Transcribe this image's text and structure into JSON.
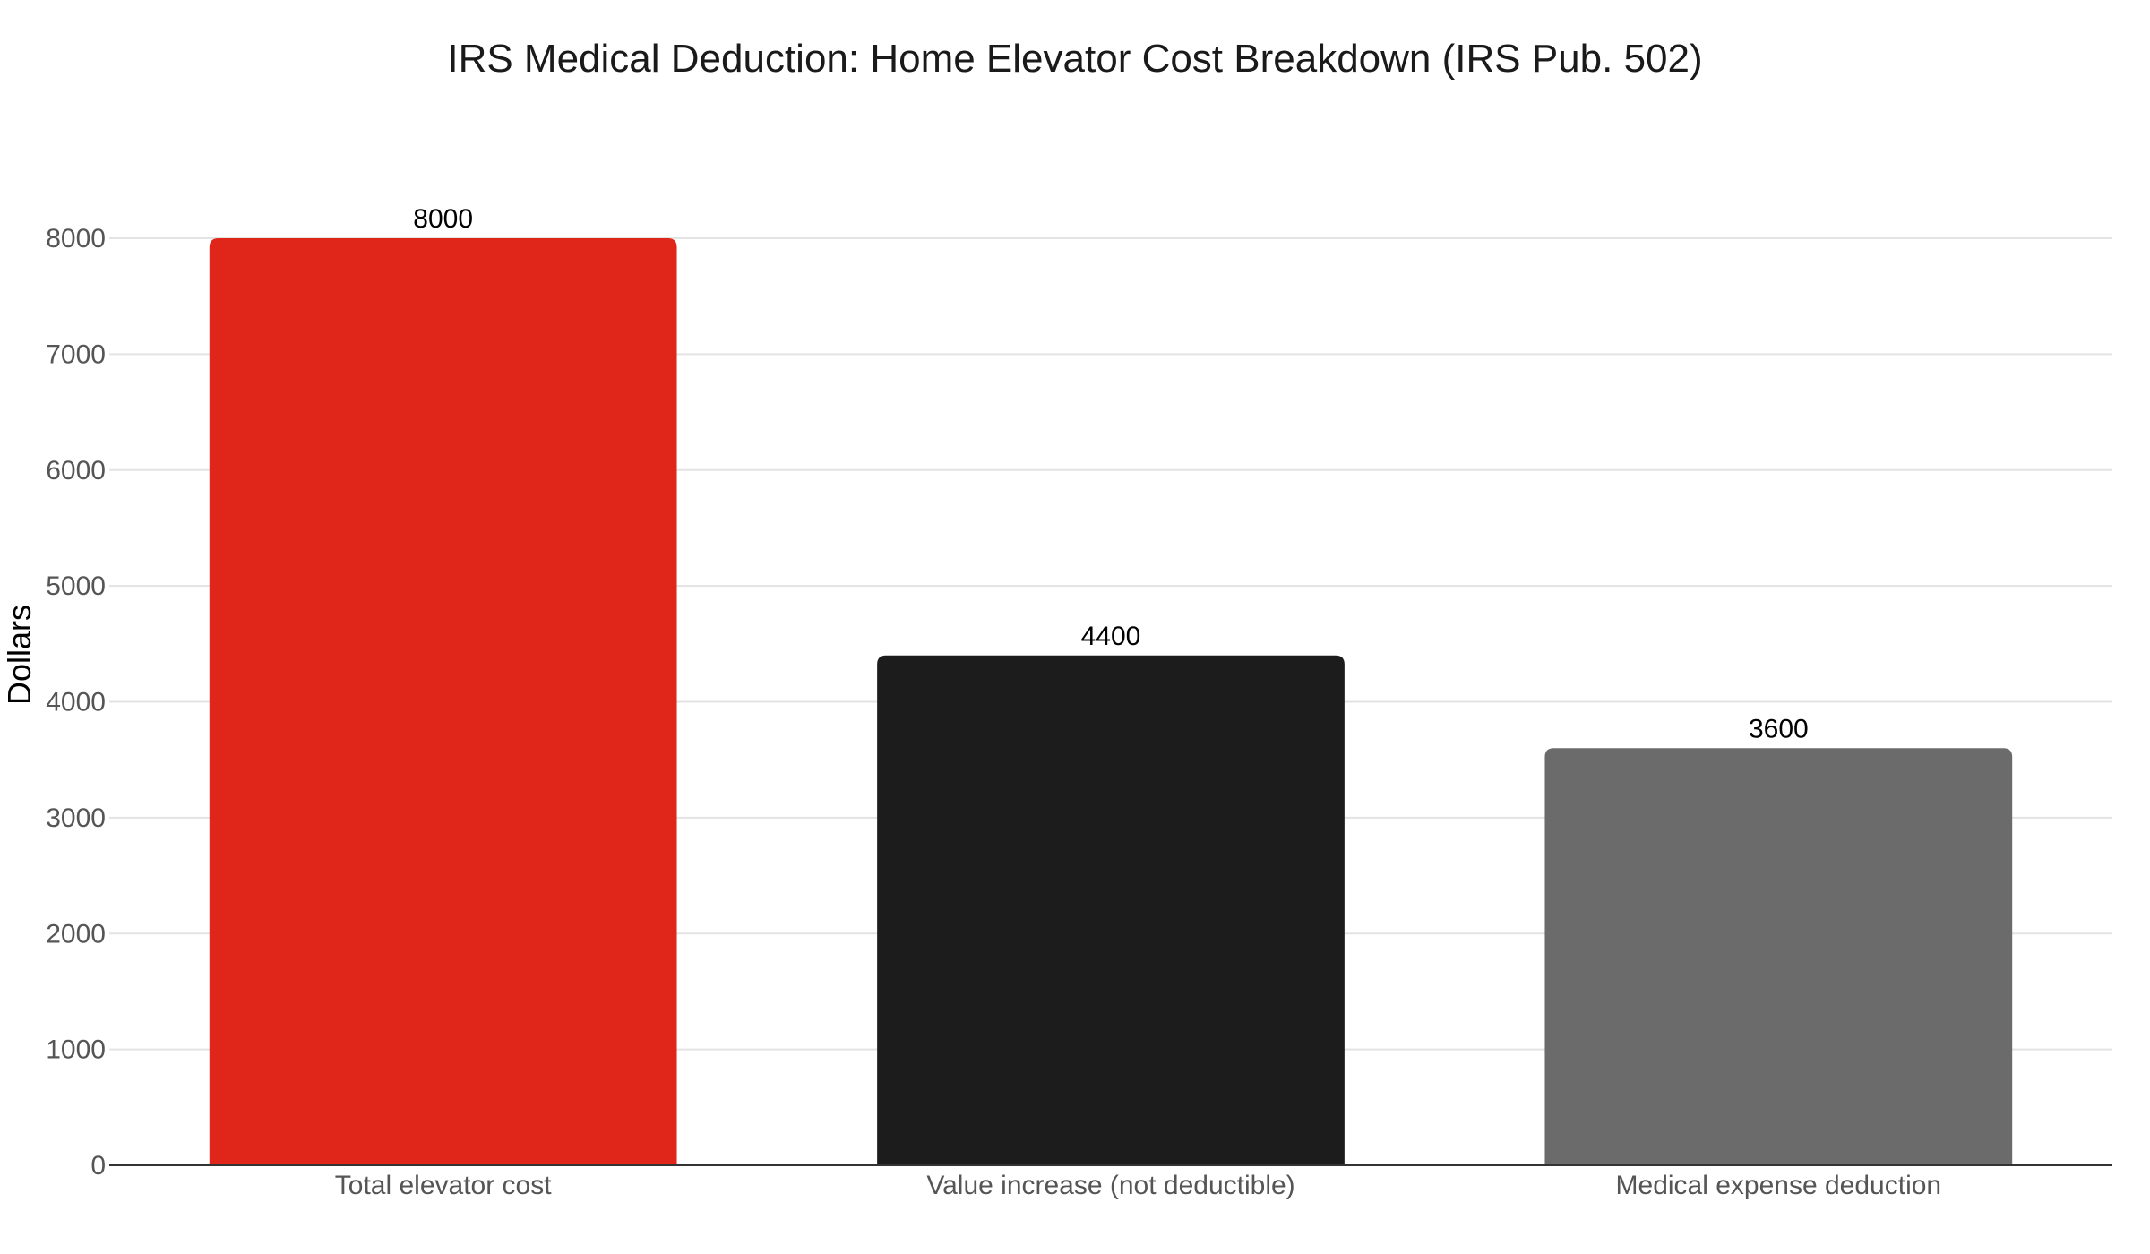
{
  "chart_data": {
    "type": "bar",
    "title": "IRS Medical Deduction: Home Elevator Cost Breakdown (IRS Pub. 502)",
    "xlabel": "",
    "ylabel": "Dollars",
    "categories": [
      "Total elevator cost",
      "Value increase (not deductible)",
      "Medical expense deduction"
    ],
    "values": [
      8000,
      4400,
      3600
    ],
    "colors": [
      "#e0261b",
      "#1c1c1c",
      "#6b6b6b"
    ],
    "ylim": [
      0,
      8000
    ],
    "yticks": [
      0,
      1000,
      2000,
      3000,
      4000,
      5000,
      6000,
      7000,
      8000
    ],
    "grid": true,
    "data_labels": [
      "8000",
      "4400",
      "3600"
    ]
  }
}
